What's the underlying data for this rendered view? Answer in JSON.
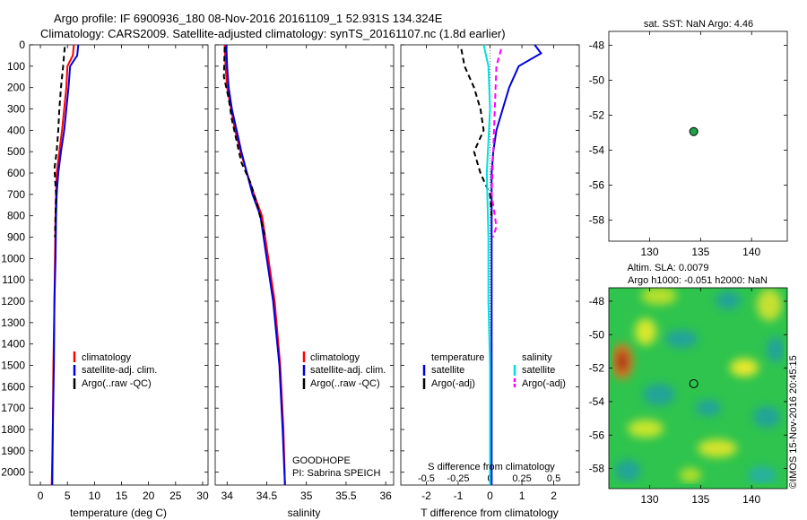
{
  "header": {
    "title_line1": "Argo profile: IF 6900936_180 08-Nov-2016 20161109_1 52.931S 134.324E",
    "title_line2": "Climatology: CARS2009. Satellite-adjusted climatology: synTS_20161107.nc (1.8d earlier)"
  },
  "footer": {
    "watermark": "©IMOS 15-Nov-2016 20:45:15",
    "program": "GOODHOPE",
    "pi": "PI: Sabrina SPEICH"
  },
  "colors": {
    "climatology": "#ff0000",
    "satellite": "#0000dd",
    "argo": "#000000",
    "satellite_salinity": "#00e0e0",
    "argo_salinity": "#ff00ff",
    "marker": "#1fa34a"
  },
  "chart_data": [
    {
      "type": "line",
      "xlabel": "temperature (deg C)",
      "ylabel": "",
      "xlim": [
        -2,
        31
      ],
      "ylim": [
        2060,
        0
      ],
      "xticks": [
        0,
        5,
        10,
        15,
        20,
        25,
        30
      ],
      "yticks": [
        0,
        100,
        200,
        300,
        400,
        500,
        600,
        700,
        800,
        900,
        1000,
        1100,
        1200,
        1300,
        1400,
        1500,
        1600,
        1700,
        1800,
        1900,
        2000
      ],
      "legend": [
        "climatology",
        "satellite-adj. clim.",
        "Argo(..raw -QC)"
      ],
      "series": [
        {
          "name": "climatology",
          "color": "#ff0000",
          "dash": "",
          "points": [
            [
              6.2,
              0
            ],
            [
              6.0,
              50
            ],
            [
              5.0,
              100
            ],
            [
              4.8,
              200
            ],
            [
              4.4,
              300
            ],
            [
              4.0,
              400
            ],
            [
              3.5,
              500
            ],
            [
              3.0,
              600
            ],
            [
              2.9,
              700
            ],
            [
              2.8,
              800
            ],
            [
              2.7,
              1000
            ],
            [
              2.6,
              1200
            ],
            [
              2.4,
              1500
            ],
            [
              2.3,
              1800
            ],
            [
              2.1,
              2060
            ]
          ]
        },
        {
          "name": "satellite-adj. clim.",
          "color": "#0000dd",
          "dash": "",
          "points": [
            [
              7.0,
              0
            ],
            [
              6.8,
              50
            ],
            [
              5.5,
              100
            ],
            [
              5.2,
              200
            ],
            [
              4.8,
              300
            ],
            [
              4.4,
              400
            ],
            [
              3.8,
              500
            ],
            [
              3.3,
              600
            ],
            [
              3.0,
              700
            ],
            [
              2.9,
              800
            ],
            [
              2.8,
              1000
            ],
            [
              2.6,
              1200
            ],
            [
              2.5,
              1500
            ],
            [
              2.3,
              1800
            ],
            [
              2.2,
              2060
            ]
          ]
        },
        {
          "name": "Argo(..raw -QC)",
          "color": "#000000",
          "dash": "6,4",
          "points": [
            [
              4.5,
              10
            ],
            [
              4.2,
              100
            ],
            [
              3.8,
              200
            ],
            [
              3.5,
              300
            ],
            [
              3.3,
              400
            ],
            [
              3.0,
              500
            ],
            [
              2.6,
              580
            ],
            [
              2.9,
              700
            ],
            [
              2.8,
              800
            ],
            [
              2.7,
              900
            ]
          ]
        }
      ]
    },
    {
      "type": "line",
      "xlabel": "salinity",
      "ylabel": "",
      "xlim": [
        33.85,
        36.1
      ],
      "ylim": [
        2060,
        0
      ],
      "xticks": [
        34,
        34.5,
        35,
        35.5,
        36
      ],
      "legend": [
        "climatology",
        "satellite-adj. clim.",
        "Argo(..raw -QC)"
      ],
      "series": [
        {
          "name": "climatology",
          "color": "#ff0000",
          "dash": "",
          "points": [
            [
              33.97,
              0
            ],
            [
              33.98,
              100
            ],
            [
              34.0,
              200
            ],
            [
              34.05,
              300
            ],
            [
              34.1,
              400
            ],
            [
              34.17,
              500
            ],
            [
              34.25,
              600
            ],
            [
              34.34,
              700
            ],
            [
              34.44,
              800
            ],
            [
              34.52,
              1000
            ],
            [
              34.6,
              1200
            ],
            [
              34.67,
              1500
            ],
            [
              34.71,
              1800
            ],
            [
              34.73,
              2060
            ]
          ]
        },
        {
          "name": "satellite-adj. clim.",
          "color": "#0000dd",
          "dash": "",
          "points": [
            [
              33.99,
              0
            ],
            [
              34.0,
              100
            ],
            [
              34.02,
              200
            ],
            [
              34.06,
              300
            ],
            [
              34.12,
              400
            ],
            [
              34.18,
              500
            ],
            [
              34.25,
              600
            ],
            [
              34.32,
              700
            ],
            [
              34.42,
              800
            ],
            [
              34.5,
              1000
            ],
            [
              34.58,
              1200
            ],
            [
              34.66,
              1500
            ],
            [
              34.7,
              1800
            ],
            [
              34.73,
              2060
            ]
          ]
        },
        {
          "name": "Argo(..raw -QC)",
          "color": "#000000",
          "dash": "6,4",
          "points": [
            [
              33.97,
              10
            ],
            [
              33.96,
              150
            ],
            [
              34.02,
              250
            ],
            [
              34.06,
              350
            ],
            [
              34.12,
              450
            ],
            [
              34.18,
              550
            ],
            [
              34.3,
              650
            ],
            [
              34.38,
              750
            ],
            [
              34.48,
              900
            ]
          ]
        }
      ]
    },
    {
      "type": "line",
      "xlabel": "T difference from climatology",
      "xlabel2": "S difference from climatology",
      "xlim": [
        -2.8,
        2.8
      ],
      "ylim": [
        2060,
        0
      ],
      "xticks": [
        -2,
        -1,
        0,
        1,
        2
      ],
      "s_ticks": [
        "-0.5",
        "-0.25",
        "0",
        "0.25",
        "0.5"
      ],
      "legend_headers": [
        "temperature",
        "salinity"
      ],
      "legend": [
        "satellite",
        "Argo(-adj)",
        "satellite",
        "Argo(-adj)"
      ],
      "series": [
        {
          "name": "satellite",
          "color": "#0000dd",
          "dash": "",
          "points": [
            [
              1.4,
              0
            ],
            [
              1.6,
              40
            ],
            [
              0.9,
              100
            ],
            [
              0.6,
              200
            ],
            [
              0.4,
              300
            ],
            [
              0.2,
              400
            ],
            [
              0.1,
              500
            ],
            [
              0.05,
              600
            ],
            [
              0.05,
              800
            ],
            [
              0.05,
              1000
            ],
            [
              0.05,
              1500
            ],
            [
              0.05,
              2060
            ]
          ]
        },
        {
          "name": "Argo(-adj)",
          "color": "#000000",
          "dash": "6,4",
          "points": [
            [
              -0.9,
              20
            ],
            [
              -0.8,
              100
            ],
            [
              -0.5,
              200
            ],
            [
              -0.3,
              300
            ],
            [
              -0.2,
              400
            ],
            [
              -0.5,
              500
            ],
            [
              -0.3,
              600
            ],
            [
              0.0,
              700
            ],
            [
              0.05,
              800
            ]
          ]
        },
        {
          "name": "satellite",
          "color": "#00e0e0",
          "dash": "",
          "points": [
            [
              -0.2,
              0
            ],
            [
              -0.05,
              100
            ],
            [
              0.0,
              300
            ],
            [
              -0.1,
              600
            ],
            [
              -0.05,
              900
            ],
            [
              -0.05,
              1200
            ],
            [
              0.0,
              1500
            ],
            [
              0.0,
              2060
            ]
          ]
        },
        {
          "name": "Argo(-adj)",
          "color": "#ff00ff",
          "dash": "6,4",
          "points": [
            [
              0.35,
              20
            ],
            [
              0.2,
              100
            ],
            [
              0.15,
              300
            ],
            [
              0.1,
              500
            ],
            [
              0.05,
              700
            ],
            [
              0.2,
              850
            ],
            [
              0.1,
              900
            ]
          ]
        }
      ]
    },
    {
      "type": "scatter",
      "title": "sat. SST: NaN Argo: 4.46",
      "xlim": [
        126,
        143.5
      ],
      "ylim": [
        -59.2,
        -47.2
      ],
      "xticks": [
        130,
        135,
        140
      ],
      "yticks": [
        -48,
        -50,
        -52,
        -54,
        -56,
        -58
      ],
      "points": [
        [
          134.324,
          -52.931
        ]
      ]
    },
    {
      "type": "heatmap",
      "title": "Altim. SLA: 0.0079",
      "subtitle": "Argo h1000: -0.051 h2000: NaN",
      "xlim": [
        126,
        143.5
      ],
      "ylim": [
        -59.2,
        -47.2
      ],
      "xticks": [
        130,
        135,
        140
      ],
      "yticks": [
        -48,
        -50,
        -52,
        -54,
        -56,
        -58
      ],
      "points": [
        [
          134.324,
          -52.931
        ]
      ]
    }
  ]
}
